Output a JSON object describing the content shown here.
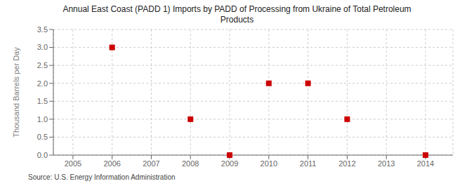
{
  "chart_data": {
    "type": "scatter",
    "title": "Annual East Coast (PADD 1) Imports by PADD of Processing from Ukraine of Total Petroleum\nProducts",
    "y_label": "Thousand Barrels per Day",
    "annotations": [
      "Source: U.S. Energy Information Administration"
    ],
    "x": [
      2006,
      2008,
      2009,
      2010,
      2011,
      2012,
      2014
    ],
    "values": [
      3.0,
      1.0,
      0.0,
      2.0,
      2.0,
      1.0,
      0.0
    ],
    "xlim": [
      2004.5,
      2014.7
    ],
    "xticks": [
      2005,
      2006,
      2007,
      2008,
      2009,
      2010,
      2011,
      2012,
      2013,
      2014
    ],
    "ylim": [
      0.0,
      3.5
    ],
    "yticks": [
      {
        "value": 0,
        "label": "0.0"
      },
      0.5,
      {
        "value": 1,
        "label": "1.0"
      },
      1.5,
      {
        "value": 2,
        "label": "2.0"
      },
      2.5,
      {
        "value": 3,
        "label": "3.0"
      },
      3.5
    ],
    "color": "#cc0000",
    "marker": "square",
    "grid": true
  }
}
